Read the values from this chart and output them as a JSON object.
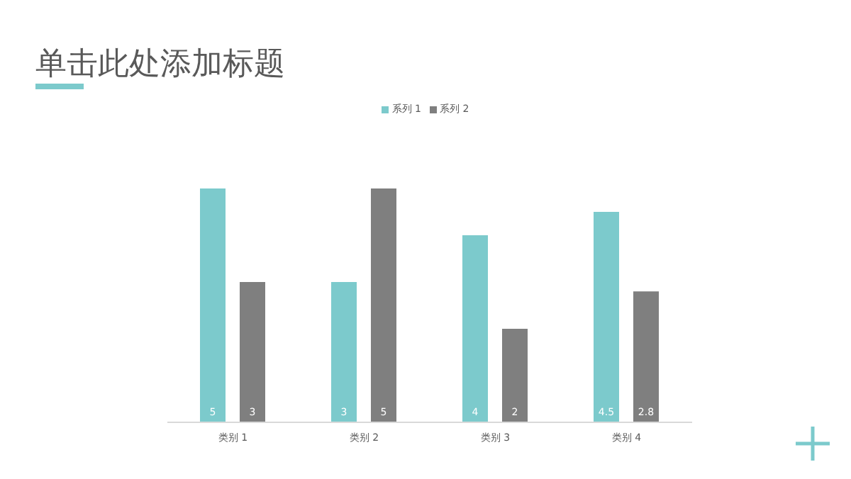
{
  "chart_data": {
    "type": "bar",
    "title": "单击此处添加标题",
    "categories": [
      "类别 1",
      "类别 2",
      "类别 3",
      "类别 4"
    ],
    "series": [
      {
        "name": "系列 1",
        "color": "#7ccacc",
        "values": [
          5,
          3,
          4,
          4.5
        ]
      },
      {
        "name": "系列 2",
        "color": "#7f7f7f",
        "values": [
          3,
          5,
          2,
          2.8
        ]
      }
    ],
    "ylim": [
      0,
      5
    ],
    "tick_labels": "x",
    "data_labels": true,
    "legend": "top",
    "grid": false
  }
}
